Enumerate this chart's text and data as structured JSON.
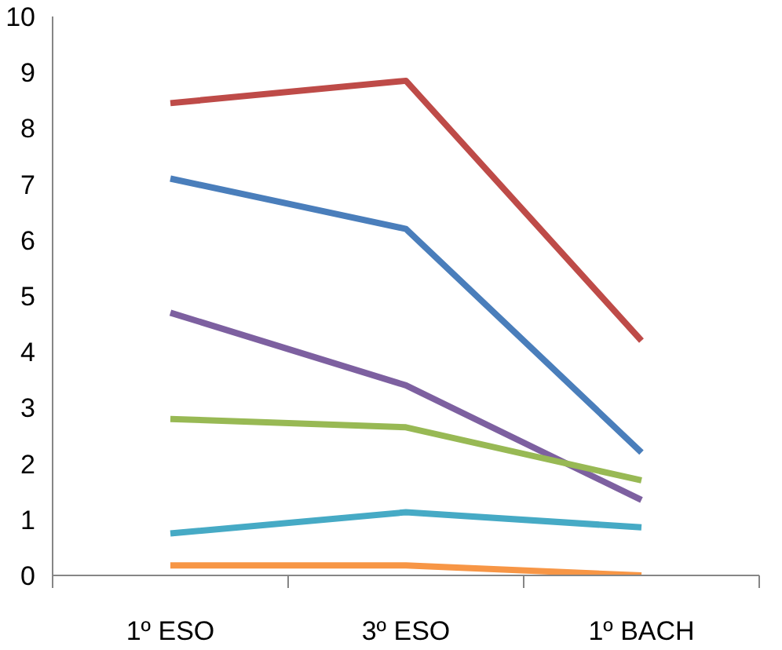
{
  "chart_data": {
    "type": "line",
    "categories": [
      "1º ESO",
      "3º ESO",
      "1º BACH"
    ],
    "series": [
      {
        "color": "#be4b48",
        "values": [
          8.45,
          8.85,
          4.2
        ]
      },
      {
        "color": "#4a7ebb",
        "values": [
          7.1,
          6.2,
          2.2
        ]
      },
      {
        "color": "#7d60a0",
        "values": [
          4.7,
          3.4,
          1.35
        ]
      },
      {
        "color": "#98b954",
        "values": [
          2.8,
          2.65,
          1.7
        ]
      },
      {
        "color": "#46aac5",
        "values": [
          0.75,
          1.13,
          0.86
        ]
      },
      {
        "color": "#f79646",
        "values": [
          0.18,
          0.18,
          0
        ]
      }
    ],
    "ylim": [
      0,
      10
    ],
    "yticks": [
      0,
      1,
      2,
      3,
      4,
      5,
      6,
      7,
      8,
      9,
      10
    ],
    "grid": false,
    "marker": "none",
    "line_style": "solid"
  }
}
